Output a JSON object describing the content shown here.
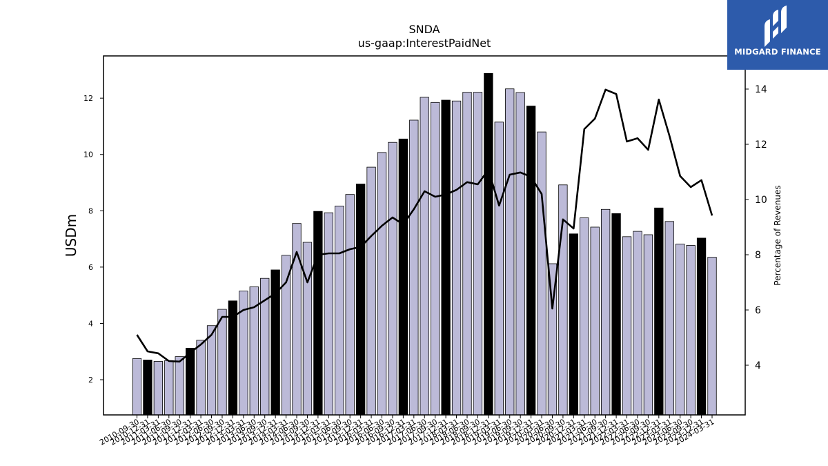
{
  "chart_data": {
    "type": "bar",
    "title": "SNDA",
    "subtitle": "us-gaap:InterestPaidNet",
    "ylabel": "USDm",
    "y2label": "Percentage of Revenues",
    "ylim": [
      0.75,
      13.5
    ],
    "y2lim": [
      2.2,
      15.2
    ],
    "yticks": [
      2,
      4,
      6,
      8,
      10,
      12
    ],
    "y2ticks": [
      4,
      6,
      8,
      10,
      12,
      14
    ],
    "categories": [
      "2010-09-30",
      "2010-12-31",
      "2011-03-31",
      "2011-06-30",
      "2011-09-30",
      "2011-12-31",
      "2012-03-31",
      "2012-06-30",
      "2012-09-30",
      "2012-12-31",
      "2013-03-31",
      "2013-06-30",
      "2013-09-30",
      "2013-12-31",
      "2014-03-31",
      "2014-06-30",
      "2014-09-30",
      "2014-12-31",
      "2015-03-31",
      "2015-06-30",
      "2015-09-30",
      "2015-12-31",
      "2016-03-31",
      "2016-06-30",
      "2016-09-30",
      "2016-12-31",
      "2017-03-31",
      "2017-06-30",
      "2017-09-30",
      "2017-12-31",
      "2018-03-31",
      "2018-06-30",
      "2018-09-30",
      "2018-12-31",
      "2019-03-31",
      "2019-06-30",
      "2019-09-30",
      "2019-12-31",
      "2020-03-31",
      "2020-06-30",
      "2020-09-30",
      "2020-12-31",
      "2021-03-31",
      "2021-06-30",
      "2021-09-30",
      "2021-12-31",
      "2022-03-31",
      "2022-06-30",
      "2022-09-30",
      "2022-12-31",
      "2023-03-31",
      "2023-06-30",
      "2023-09-30",
      "2023-12-31",
      "2024-03-31"
    ],
    "series": [
      {
        "type": "bar",
        "axis": "left",
        "values": [
          2.75,
          2.7,
          2.65,
          2.68,
          2.82,
          3.12,
          3.4,
          3.92,
          4.5,
          4.8,
          5.15,
          5.3,
          5.6,
          5.9,
          6.42,
          7.55,
          6.88,
          7.98,
          7.93,
          8.17,
          8.58,
          8.95,
          9.55,
          10.07,
          10.43,
          10.55,
          11.22,
          12.03,
          11.85,
          11.93,
          11.9,
          12.21,
          12.21,
          12.88,
          11.15,
          12.33,
          12.2,
          11.72,
          10.8,
          6.12,
          8.92,
          7.18,
          7.75,
          7.42,
          8.05,
          7.9,
          7.08,
          7.27,
          7.15,
          8.1,
          7.62,
          6.82,
          6.77,
          7.03,
          6.35
        ]
      },
      {
        "type": "line",
        "axis": "right",
        "values": [
          5.1,
          4.5,
          4.43,
          4.15,
          4.13,
          4.45,
          4.75,
          5.1,
          5.75,
          5.75,
          6.0,
          6.1,
          6.35,
          6.6,
          7.0,
          8.1,
          7.0,
          8.0,
          8.05,
          8.05,
          8.2,
          8.28,
          8.68,
          9.05,
          9.35,
          9.1,
          9.65,
          10.3,
          10.1,
          10.18,
          10.35,
          10.63,
          10.55,
          11.08,
          9.78,
          10.9,
          10.98,
          10.82,
          10.2,
          6.05,
          9.28,
          8.95,
          12.55,
          12.93,
          13.98,
          13.82,
          12.1,
          12.22,
          11.8,
          13.62,
          12.3,
          10.85,
          10.45,
          10.7,
          9.42
        ]
      }
    ],
    "highlight_color": "#000000",
    "bar_color": "#bcbad8",
    "line_color": "#000000",
    "grid": false,
    "logo": {
      "text": "MIDGARD FINANCE",
      "bg_color": "#2d5bab"
    }
  }
}
